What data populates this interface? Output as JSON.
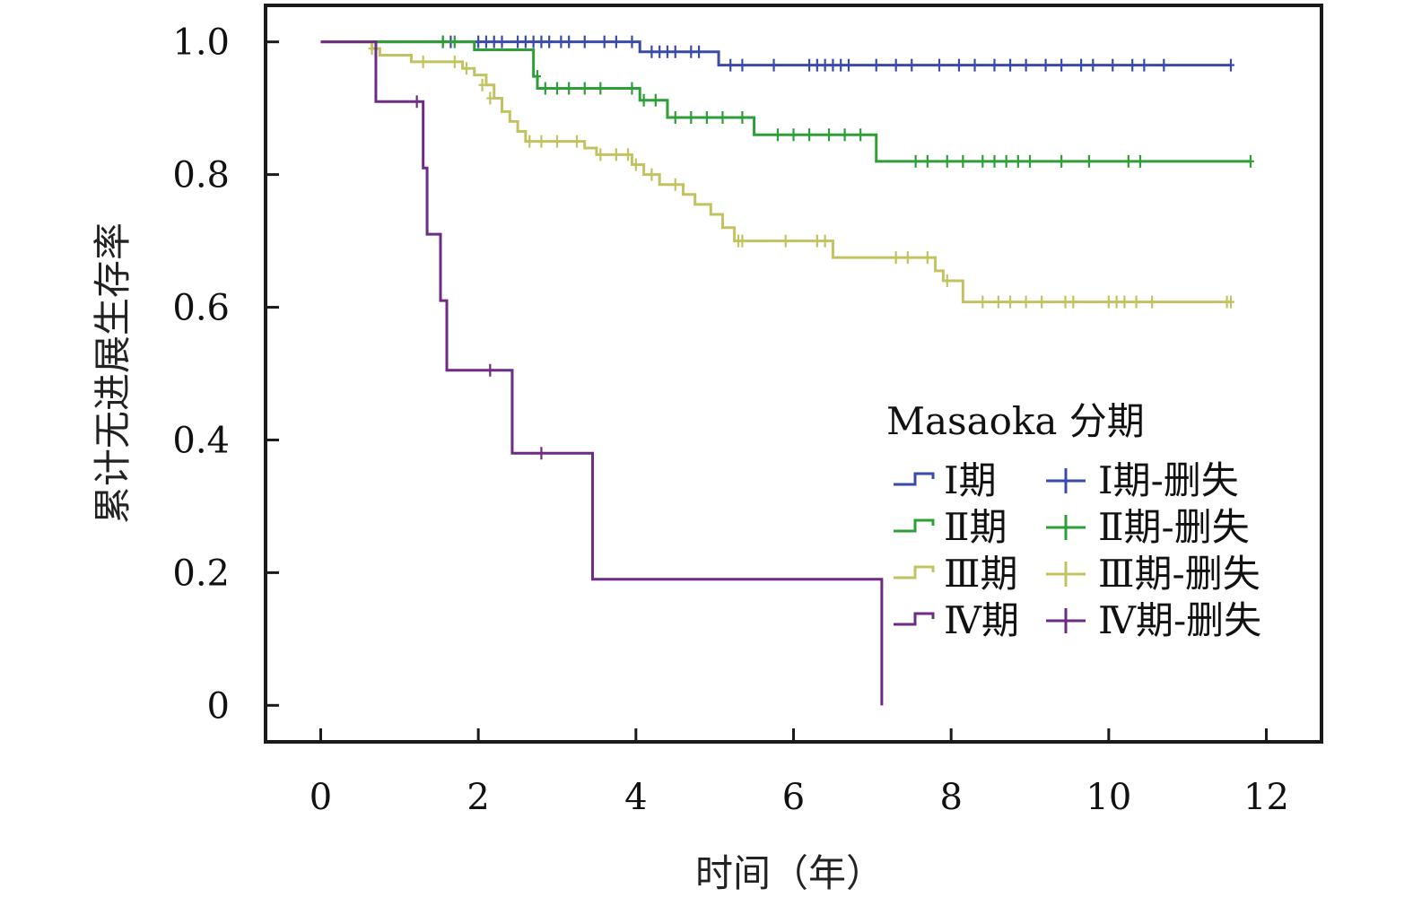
{
  "chart_data": {
    "type": "line",
    "subtype": "kaplan-meier step curve with censor marks",
    "title": "",
    "xlabel": "时间（年）",
    "ylabel": "累计无进展生存率",
    "xlim": [
      -0.7,
      12.7
    ],
    "ylim": [
      -0.055,
      1.055
    ],
    "x_ticks": [
      0,
      2,
      4,
      6,
      8,
      10,
      12
    ],
    "x_tick_labels": [
      "0",
      "2",
      "4",
      "6",
      "8",
      "10",
      "12"
    ],
    "y_ticks": [
      0,
      0.2,
      0.4,
      0.6,
      0.8,
      1.0
    ],
    "y_tick_labels": [
      "0",
      "0.2",
      "0.4",
      "0.6",
      "0.8",
      "1.0"
    ],
    "grid": false,
    "legend": {
      "title": "Masaoka 分期",
      "placement": "right-middle",
      "columns": 2,
      "entries": [
        {
          "series": "I",
          "line_label": "Ⅰ期",
          "censor_label": "Ⅰ期-删失"
        },
        {
          "series": "II",
          "line_label": "Ⅱ期",
          "censor_label": "Ⅱ期-删失"
        },
        {
          "series": "III",
          "line_label": "Ⅲ期",
          "censor_label": "Ⅲ期-删失"
        },
        {
          "series": "IV",
          "line_label": "Ⅳ期",
          "censor_label": "Ⅳ期-删失"
        }
      ]
    },
    "series": [
      {
        "name": "Ⅰ期",
        "color": "#3a4aa8",
        "steps": [
          [
            0,
            1.0
          ],
          [
            4.05,
            0.985
          ],
          [
            5.05,
            0.965
          ]
        ],
        "end": 11.55,
        "censored": [
          [
            1.55,
            1.0
          ],
          [
            1.65,
            1.0
          ],
          [
            2.0,
            1.0
          ],
          [
            2.1,
            1.0
          ],
          [
            2.2,
            1.0
          ],
          [
            2.3,
            1.0
          ],
          [
            2.5,
            1.0
          ],
          [
            2.6,
            1.0
          ],
          [
            2.7,
            1.0
          ],
          [
            2.8,
            1.0
          ],
          [
            2.9,
            1.0
          ],
          [
            3.05,
            1.0
          ],
          [
            3.15,
            1.0
          ],
          [
            3.35,
            1.0
          ],
          [
            3.6,
            1.0
          ],
          [
            3.75,
            1.0
          ],
          [
            3.95,
            1.0
          ],
          [
            4.2,
            0.985
          ],
          [
            4.3,
            0.985
          ],
          [
            4.4,
            0.985
          ],
          [
            4.5,
            0.985
          ],
          [
            4.7,
            0.985
          ],
          [
            4.8,
            0.985
          ],
          [
            5.2,
            0.965
          ],
          [
            5.35,
            0.965
          ],
          [
            5.75,
            0.965
          ],
          [
            6.2,
            0.965
          ],
          [
            6.3,
            0.965
          ],
          [
            6.4,
            0.965
          ],
          [
            6.5,
            0.965
          ],
          [
            6.6,
            0.965
          ],
          [
            6.7,
            0.965
          ],
          [
            7.05,
            0.965
          ],
          [
            7.3,
            0.965
          ],
          [
            7.5,
            0.965
          ],
          [
            7.85,
            0.965
          ],
          [
            8.1,
            0.965
          ],
          [
            8.3,
            0.965
          ],
          [
            8.55,
            0.965
          ],
          [
            8.75,
            0.965
          ],
          [
            8.95,
            0.965
          ],
          [
            9.2,
            0.965
          ],
          [
            9.4,
            0.965
          ],
          [
            9.65,
            0.965
          ],
          [
            9.8,
            0.965
          ],
          [
            10.05,
            0.965
          ],
          [
            10.3,
            0.965
          ],
          [
            10.45,
            0.965
          ],
          [
            10.7,
            0.965
          ],
          [
            11.55,
            0.965
          ]
        ]
      },
      {
        "name": "Ⅱ期",
        "color": "#2e9e36",
        "steps": [
          [
            0,
            1.0
          ],
          [
            1.95,
            0.988
          ],
          [
            2.7,
            0.948
          ],
          [
            2.75,
            0.93
          ],
          [
            4.05,
            0.912
          ],
          [
            4.4,
            0.886
          ],
          [
            5.5,
            0.86
          ],
          [
            7.05,
            0.82
          ]
        ],
        "end": 11.8,
        "censored": [
          [
            1.55,
            1.0
          ],
          [
            1.7,
            1.0
          ],
          [
            2.75,
            0.948
          ],
          [
            2.85,
            0.93
          ],
          [
            3.0,
            0.93
          ],
          [
            3.15,
            0.93
          ],
          [
            3.35,
            0.93
          ],
          [
            3.55,
            0.93
          ],
          [
            3.95,
            0.93
          ],
          [
            4.1,
            0.912
          ],
          [
            4.25,
            0.912
          ],
          [
            4.5,
            0.886
          ],
          [
            4.7,
            0.886
          ],
          [
            4.9,
            0.886
          ],
          [
            5.1,
            0.886
          ],
          [
            5.35,
            0.886
          ],
          [
            5.8,
            0.86
          ],
          [
            6.0,
            0.86
          ],
          [
            6.2,
            0.86
          ],
          [
            6.45,
            0.86
          ],
          [
            6.65,
            0.86
          ],
          [
            6.85,
            0.86
          ],
          [
            7.55,
            0.82
          ],
          [
            7.7,
            0.82
          ],
          [
            7.95,
            0.82
          ],
          [
            8.15,
            0.82
          ],
          [
            8.4,
            0.82
          ],
          [
            8.55,
            0.82
          ],
          [
            8.7,
            0.82
          ],
          [
            8.85,
            0.82
          ],
          [
            9.0,
            0.82
          ],
          [
            9.4,
            0.82
          ],
          [
            9.75,
            0.82
          ],
          [
            10.25,
            0.82
          ],
          [
            10.4,
            0.82
          ],
          [
            11.8,
            0.82
          ]
        ]
      },
      {
        "name": "Ⅲ期",
        "color": "#c2c260",
        "steps": [
          [
            0,
            1.0
          ],
          [
            0.65,
            0.99
          ],
          [
            0.75,
            0.98
          ],
          [
            1.15,
            0.97
          ],
          [
            1.8,
            0.96
          ],
          [
            1.95,
            0.95
          ],
          [
            2.1,
            0.935
          ],
          [
            2.2,
            0.915
          ],
          [
            2.3,
            0.895
          ],
          [
            2.4,
            0.88
          ],
          [
            2.5,
            0.865
          ],
          [
            2.6,
            0.85
          ],
          [
            3.35,
            0.84
          ],
          [
            3.5,
            0.83
          ],
          [
            3.95,
            0.815
          ],
          [
            4.1,
            0.8
          ],
          [
            4.3,
            0.785
          ],
          [
            4.6,
            0.77
          ],
          [
            4.75,
            0.755
          ],
          [
            4.95,
            0.74
          ],
          [
            5.1,
            0.72
          ],
          [
            5.25,
            0.7
          ],
          [
            6.5,
            0.675
          ],
          [
            7.8,
            0.655
          ],
          [
            7.9,
            0.64
          ],
          [
            8.15,
            0.608
          ]
        ],
        "end": 11.55,
        "censored": [
          [
            0.65,
            0.99
          ],
          [
            1.3,
            0.97
          ],
          [
            1.7,
            0.97
          ],
          [
            1.85,
            0.96
          ],
          [
            2.05,
            0.935
          ],
          [
            2.15,
            0.915
          ],
          [
            2.65,
            0.85
          ],
          [
            2.8,
            0.85
          ],
          [
            3.0,
            0.85
          ],
          [
            3.25,
            0.85
          ],
          [
            3.55,
            0.83
          ],
          [
            3.75,
            0.83
          ],
          [
            3.9,
            0.83
          ],
          [
            4.0,
            0.815
          ],
          [
            4.2,
            0.8
          ],
          [
            4.5,
            0.785
          ],
          [
            5.3,
            0.7
          ],
          [
            5.35,
            0.7
          ],
          [
            5.9,
            0.7
          ],
          [
            6.3,
            0.7
          ],
          [
            6.4,
            0.7
          ],
          [
            7.3,
            0.675
          ],
          [
            7.45,
            0.675
          ],
          [
            7.7,
            0.675
          ],
          [
            7.95,
            0.64
          ],
          [
            8.4,
            0.608
          ],
          [
            8.6,
            0.608
          ],
          [
            8.75,
            0.608
          ],
          [
            8.95,
            0.608
          ],
          [
            9.15,
            0.608
          ],
          [
            9.45,
            0.608
          ],
          [
            9.55,
            0.608
          ],
          [
            10.0,
            0.608
          ],
          [
            10.1,
            0.608
          ],
          [
            10.2,
            0.608
          ],
          [
            10.35,
            0.608
          ],
          [
            10.55,
            0.608
          ],
          [
            11.5,
            0.608
          ],
          [
            11.55,
            0.608
          ]
        ]
      },
      {
        "name": "Ⅳ期",
        "color": "#6e2b84",
        "steps": [
          [
            0,
            1.0
          ],
          [
            0.7,
            0.91
          ],
          [
            1.3,
            0.81
          ],
          [
            1.35,
            0.71
          ],
          [
            1.52,
            0.61
          ],
          [
            1.6,
            0.505
          ],
          [
            2.43,
            0.38
          ],
          [
            3.45,
            0.19
          ],
          [
            7.12,
            0.0
          ]
        ],
        "end": 7.12,
        "censored": [
          [
            1.22,
            0.91
          ],
          [
            2.15,
            0.505
          ],
          [
            2.8,
            0.38
          ]
        ]
      }
    ]
  }
}
